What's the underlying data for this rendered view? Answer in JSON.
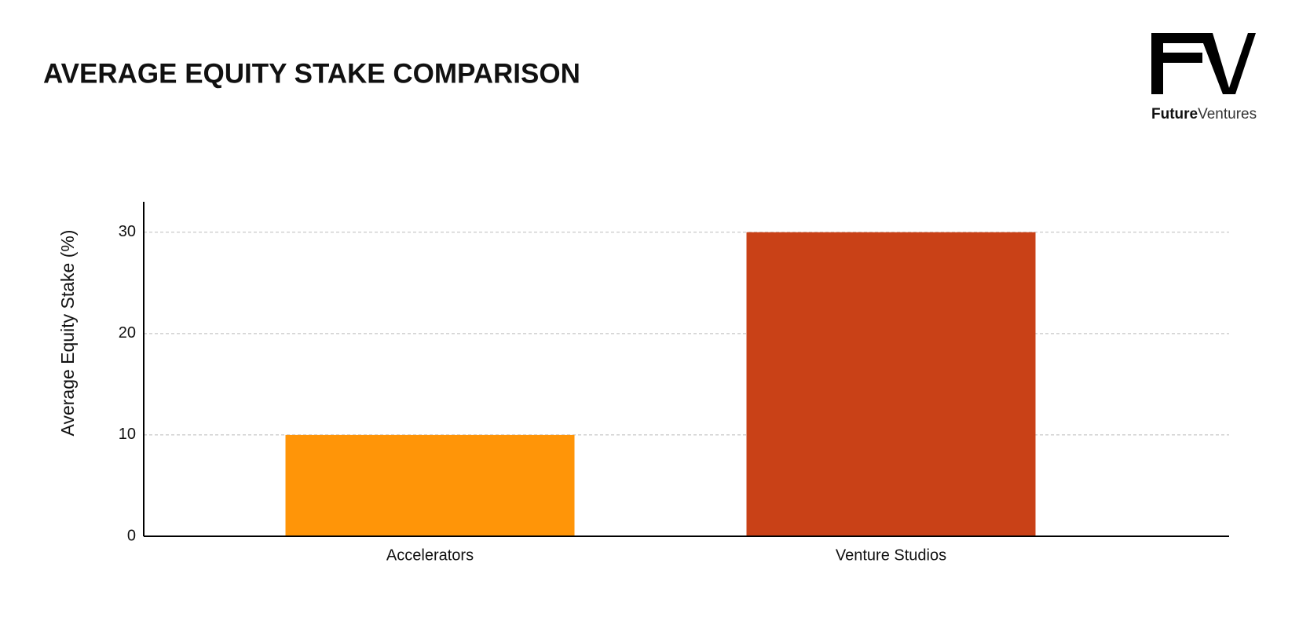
{
  "brand": {
    "mark": "FV",
    "name_bold": "Future",
    "name_light": "Ventures"
  },
  "chart_data": {
    "type": "bar",
    "title": "AVERAGE EQUITY STAKE COMPARISON",
    "y_label": "Average Equity Stake (%)",
    "categories": [
      "Accelerators",
      "Venture Studios"
    ],
    "values": [
      10,
      30
    ],
    "colors": [
      "#ff9508",
      "#c94117"
    ],
    "ylim": [
      0,
      33
    ],
    "yticks": [
      0,
      10,
      20,
      30
    ],
    "grid": true
  }
}
